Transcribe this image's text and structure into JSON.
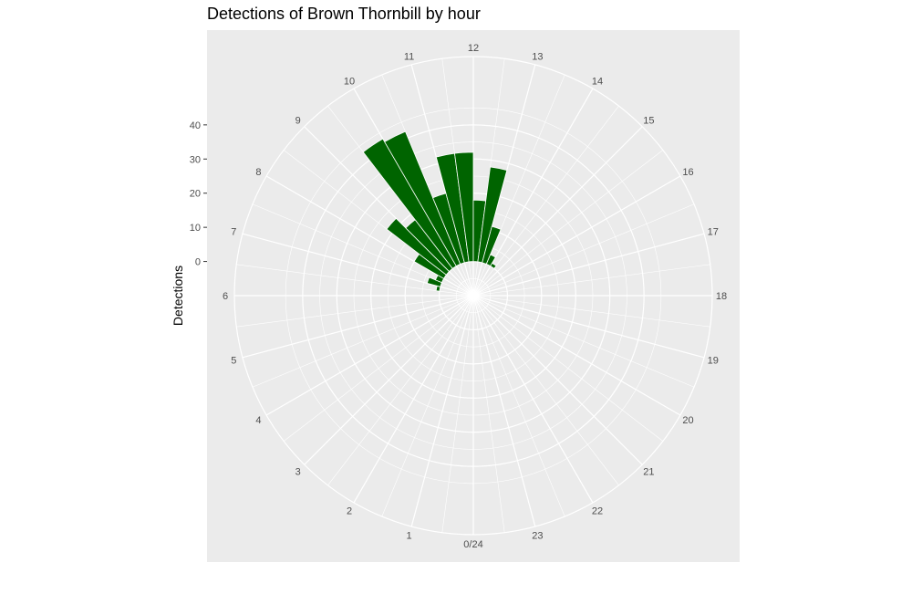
{
  "chart_data": {
    "type": "bar",
    "coord": "polar",
    "title": "Detections of Brown Thornbill by hour",
    "ylabel": "Detections",
    "xlabel": "",
    "y_ticks": [
      0,
      10,
      20,
      30,
      40
    ],
    "ylim": [
      -10,
      60
    ],
    "hours": [
      "0/24",
      "1",
      "2",
      "3",
      "4",
      "5",
      "6",
      "7",
      "8",
      "9",
      "10",
      "11",
      "12",
      "13",
      "14",
      "15",
      "16",
      "17",
      "18",
      "19",
      "20",
      "21",
      "22",
      "23"
    ],
    "x_range": [
      0,
      24
    ],
    "bars": [
      {
        "start": 6.5,
        "width": 0.5,
        "value": 1
      },
      {
        "start": 7.0,
        "width": 0.5,
        "value": 4
      },
      {
        "start": 7.5,
        "width": 0.5,
        "value": 2
      },
      {
        "start": 8.0,
        "width": 0.5,
        "value": 10
      },
      {
        "start": 8.5,
        "width": 0.5,
        "value": 22
      },
      {
        "start": 9.0,
        "width": 0.5,
        "value": 18
      },
      {
        "start": 9.5,
        "width": 0.5,
        "value": 43
      },
      {
        "start": 10.0,
        "width": 0.5,
        "value": 42
      },
      {
        "start": 10.5,
        "width": 0.5,
        "value": 21
      },
      {
        "start": 11.0,
        "width": 0.5,
        "value": 32
      },
      {
        "start": 11.5,
        "width": 0.5,
        "value": 32
      },
      {
        "start": 12.0,
        "width": 0.5,
        "value": 18
      },
      {
        "start": 12.5,
        "width": 0.5,
        "value": 28
      },
      {
        "start": 13.0,
        "width": 0.5,
        "value": 11
      },
      {
        "start": 13.5,
        "width": 0.5,
        "value": 3
      },
      {
        "start": 14.0,
        "width": 0.5,
        "value": 1
      }
    ],
    "colors": {
      "bar": "#006400",
      "panel": "#ebebeb",
      "grid": "#ffffff"
    },
    "grid": true,
    "legend": "none"
  }
}
